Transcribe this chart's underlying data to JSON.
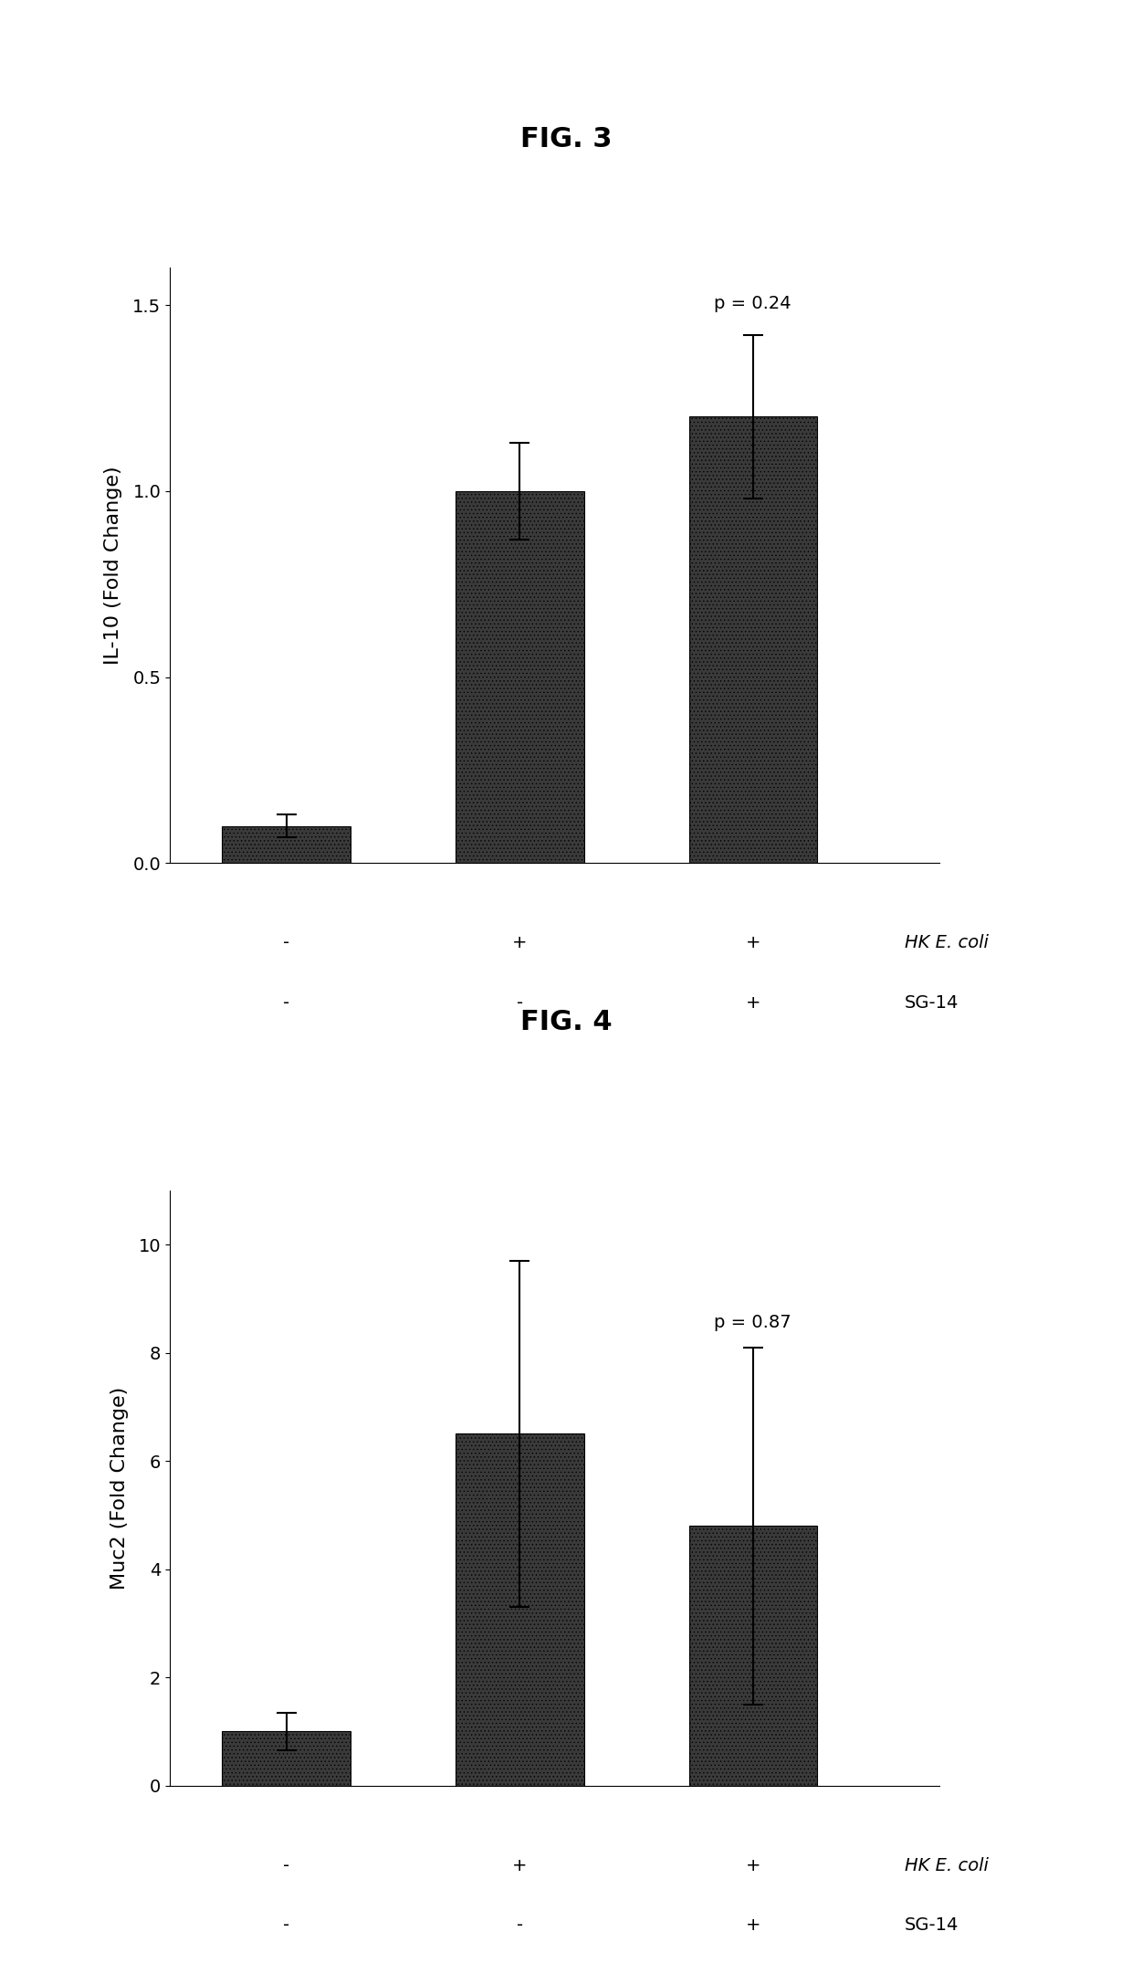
{
  "fig3_title": "FIG. 3",
  "fig4_title": "FIG. 4",
  "fig3_values": [
    0.1,
    1.0,
    1.2
  ],
  "fig3_errors": [
    0.03,
    0.13,
    0.22
  ],
  "fig3_ylabel": "IL-10 (Fold Change)",
  "fig3_ylim": [
    0,
    1.6
  ],
  "fig3_yticks": [
    0.0,
    0.5,
    1.0,
    1.5
  ],
  "fig3_pvalue": "p = 0.24",
  "fig3_pvalue_bar_index": 3,
  "fig4_values": [
    1.0,
    6.5,
    4.8
  ],
  "fig4_errors": [
    0.35,
    3.2,
    3.3
  ],
  "fig4_ylabel": "Muc2 (Fold Change)",
  "fig4_ylim": [
    0,
    11
  ],
  "fig4_yticks": [
    0,
    2,
    4,
    6,
    8,
    10
  ],
  "fig4_pvalue": "p = 0.87",
  "fig4_pvalue_bar_index": 3,
  "x_labels_row1": [
    "-",
    "+",
    "+"
  ],
  "x_labels_row2": [
    "-",
    "-",
    "+"
  ],
  "x_label_right1": "HK E. coli",
  "x_label_right2": "SG-14",
  "bar_color": "#3a3a3a",
  "bar_hatch": "....",
  "bar_width": 0.55,
  "bar_positions": [
    1,
    2,
    3
  ],
  "title_fontsize": 22,
  "ylabel_fontsize": 16,
  "tick_fontsize": 14,
  "annotation_fontsize": 14,
  "xlabel_fontsize": 14,
  "figure_width": 12.4,
  "figure_height": 21.73,
  "background_color": "#ffffff"
}
